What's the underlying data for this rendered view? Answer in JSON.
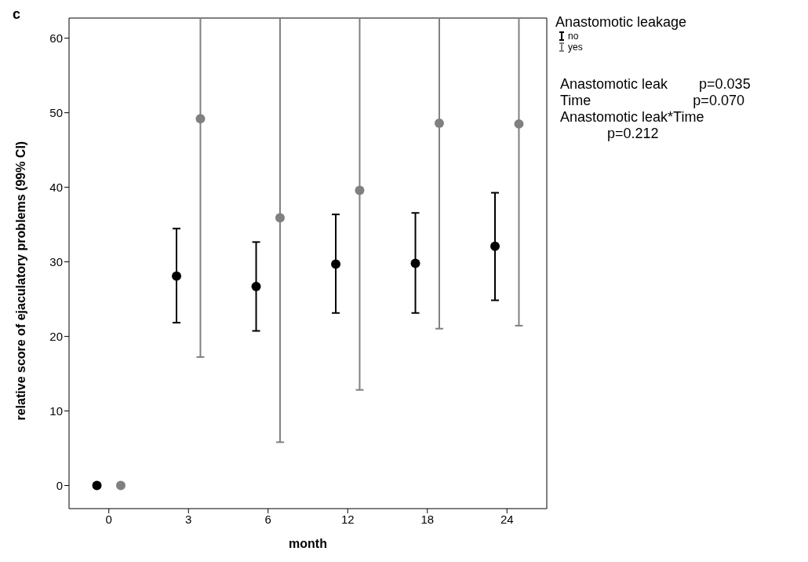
{
  "chart_data": {
    "type": "scatter",
    "xlabel": "month",
    "ylabel": "relative score of ejaculatory problems (99% CI)",
    "legend_title": "Anastomotic leakage",
    "categories": [
      "0",
      "3",
      "6",
      "12",
      "18",
      "24"
    ],
    "series": [
      {
        "name": "no",
        "color": "#000000",
        "values": [
          0,
          28.1,
          26.7,
          29.7,
          29.8,
          32.1
        ],
        "errors": [
          null,
          [
            21.8,
            34.4
          ],
          [
            20.7,
            32.6
          ],
          [
            23.1,
            36.3
          ],
          [
            23.1,
            36.5
          ],
          [
            24.8,
            39.2
          ]
        ]
      },
      {
        "name": "yes",
        "color": "#808080",
        "values": [
          0,
          49.2,
          35.9,
          39.6,
          48.6,
          48.5
        ],
        "errors": [
          null,
          [
            17.2,
            62.7
          ],
          [
            5.8,
            62.7
          ],
          [
            12.8,
            62.7
          ],
          [
            21.0,
            62.7
          ],
          [
            21.4,
            62.7
          ]
        ]
      }
    ],
    "ylim": [
      -3.1,
      62.7
    ],
    "yticks": [
      0,
      10,
      20,
      30,
      40,
      50,
      60
    ],
    "legend": "top right",
    "marker": "circle",
    "annotations": [
      "c",
      "Anastomotic leak        p=0.035",
      "Time                          p=0.070",
      "Anastomotic leak*Time",
      "p=0.212"
    ]
  }
}
